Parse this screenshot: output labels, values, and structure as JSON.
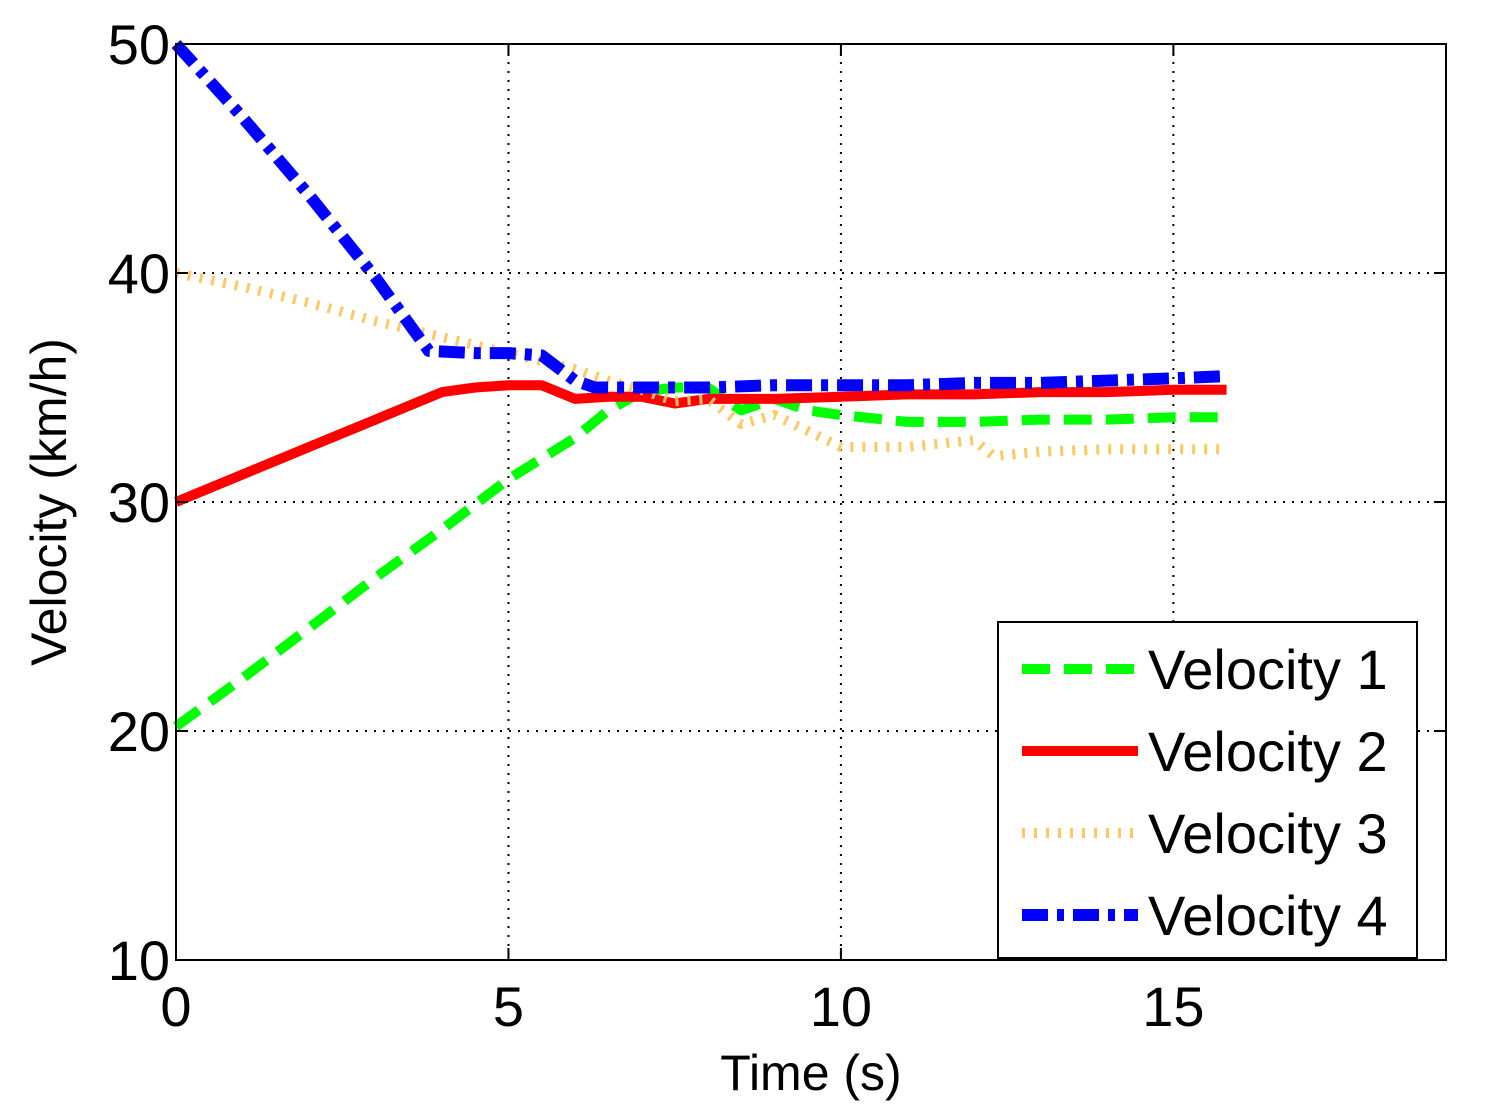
{
  "chart_data": {
    "type": "line",
    "title": "",
    "xlabel": "Time (s)",
    "ylabel": "Velocity (km/h)",
    "xlim": [
      0,
      19.1
    ],
    "ylim": [
      10,
      50
    ],
    "xticks": [
      0,
      5,
      10,
      15
    ],
    "yticks": [
      10,
      20,
      30,
      40,
      50
    ],
    "grid": true,
    "legend_position": "bottom-right",
    "series": [
      {
        "name": "Velocity 1",
        "color": "#00ff00",
        "style": "dashed",
        "x": [
          0,
          1,
          2,
          3,
          4,
          5,
          6,
          6.5,
          7,
          7.5,
          8,
          8.5,
          9,
          9.5,
          10,
          11,
          12,
          13,
          14,
          15,
          15.8
        ],
        "y": [
          20.2,
          22.3,
          24.5,
          26.7,
          28.8,
          31,
          32.8,
          34,
          34.8,
          35,
          35,
          34,
          34.5,
          34,
          33.8,
          33.5,
          33.5,
          33.6,
          33.6,
          33.7,
          33.7
        ]
      },
      {
        "name": "Velocity 2",
        "color": "#ff0000",
        "style": "solid",
        "x": [
          0,
          1,
          2,
          3,
          4,
          4.5,
          5,
          5.5,
          6,
          6.5,
          7,
          7.5,
          8,
          9,
          10,
          11,
          12,
          13,
          14,
          15,
          15.8
        ],
        "y": [
          30,
          31.2,
          32.4,
          33.6,
          34.8,
          35,
          35.1,
          35.1,
          34.5,
          34.6,
          34.6,
          34.3,
          34.5,
          34.5,
          34.6,
          34.7,
          34.7,
          34.8,
          34.8,
          34.9,
          34.9
        ]
      },
      {
        "name": "Velocity 3",
        "color": "#ffc864",
        "style": "dotted",
        "x": [
          0,
          1,
          2,
          3,
          4,
          5,
          6,
          6.5,
          7,
          7.5,
          8,
          8.5,
          9,
          9.5,
          10,
          11,
          12,
          12.3,
          13,
          14,
          15,
          15.8
        ],
        "y": [
          40,
          39.4,
          38.7,
          37.9,
          37.2,
          36.5,
          35.8,
          35.3,
          34.9,
          34.4,
          34.5,
          33.4,
          33.8,
          33.1,
          32.4,
          32.4,
          32.7,
          32,
          32.2,
          32.3,
          32.3,
          32.3
        ]
      },
      {
        "name": "Velocity 4",
        "color": "#0000ff",
        "style": "dashdot",
        "x": [
          0,
          1,
          2,
          3,
          3.8,
          4.5,
          5,
          5.5,
          6,
          6.3,
          7,
          8,
          9,
          10,
          11,
          12,
          13,
          14,
          15,
          15.8
        ],
        "y": [
          50,
          46.8,
          43.4,
          39.8,
          36.6,
          36.5,
          36.5,
          36.4,
          35.3,
          35,
          35,
          35,
          35.1,
          35.1,
          35.1,
          35.2,
          35.2,
          35.3,
          35.4,
          35.5
        ]
      }
    ]
  }
}
